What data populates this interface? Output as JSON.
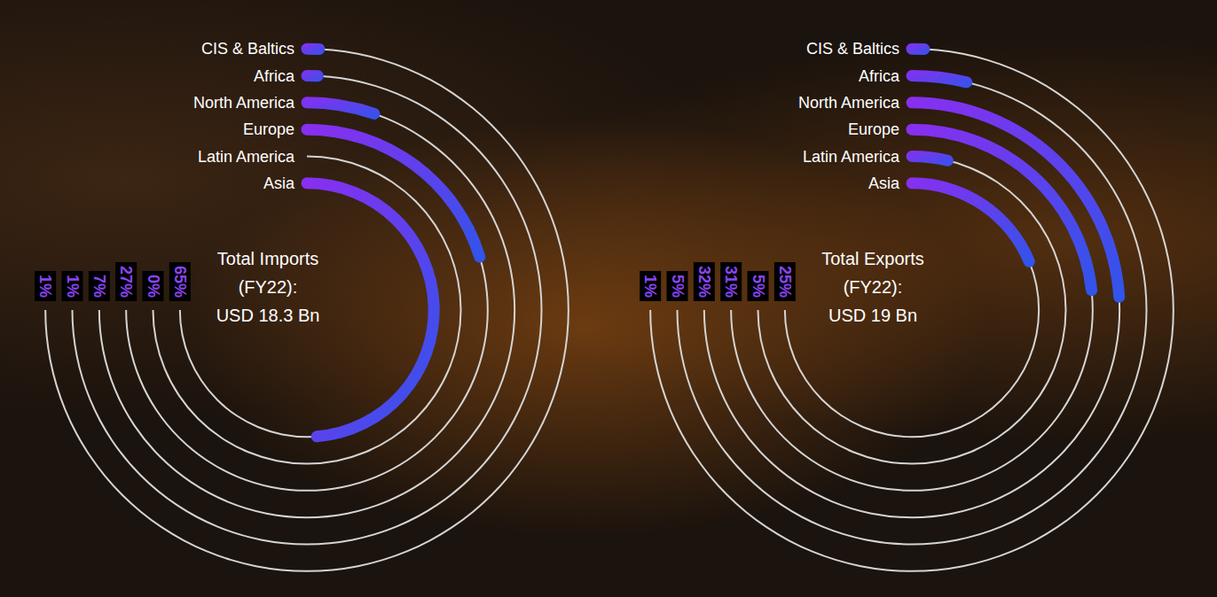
{
  "chart_data": [
    {
      "type": "bar",
      "title": "Total Imports (FY22):",
      "subtitle": "USD 18.3 Bn",
      "categories": [
        "CIS & Baltics",
        "Africa",
        "North America",
        "Europe",
        "Latin America",
        "Asia"
      ],
      "values": [
        1,
        1,
        7,
        27,
        0,
        65
      ],
      "value_labels": [
        "1%",
        "1%",
        "7%",
        "27%",
        "0%",
        "65%"
      ],
      "xlim": [
        0,
        100
      ],
      "color": "#2f55ea"
    },
    {
      "type": "bar",
      "title": "Total Exports (FY22):",
      "subtitle": "USD 19 Bn",
      "categories": [
        "CIS & Baltics",
        "Africa",
        "North America",
        "Europe",
        "Latin America",
        "Asia"
      ],
      "values": [
        1,
        5,
        32,
        31,
        5,
        25
      ],
      "value_labels": [
        "1%",
        "5%",
        "32%",
        "31%",
        "5%",
        "25%"
      ],
      "xlim": [
        0,
        100
      ],
      "color": "#2f55ea"
    }
  ]
}
